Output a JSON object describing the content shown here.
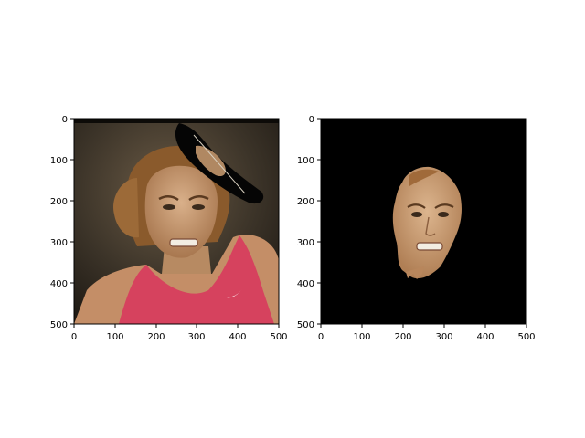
{
  "figure": {
    "panels": [
      {
        "name": "original-image",
        "x_ticks": [
          "0",
          "100",
          "200",
          "300",
          "400",
          "500"
        ],
        "y_ticks": [
          "0",
          "100",
          "200",
          "300",
          "400",
          "500"
        ],
        "xlim": [
          0,
          500
        ],
        "ylim": [
          500,
          0
        ],
        "content": "photo of a woman in a pink tank top making a grimacing face, with a black warped rotated band over the top right"
      },
      {
        "name": "face-mask-result",
        "x_ticks": [
          "0",
          "100",
          "200",
          "300",
          "400",
          "500"
        ],
        "y_ticks": [
          "0",
          "100",
          "200",
          "300",
          "400",
          "500"
        ],
        "xlim": [
          0,
          500
        ],
        "ylim": [
          500,
          0
        ],
        "content": "segmented face region on a black background"
      }
    ],
    "colors": {
      "background_dark": "#3b3328",
      "skin": "#c99a72",
      "hair": "#8a5a2c",
      "shirt": "#d6425e",
      "mask_bg": "#000000",
      "axis": "#000000"
    }
  }
}
